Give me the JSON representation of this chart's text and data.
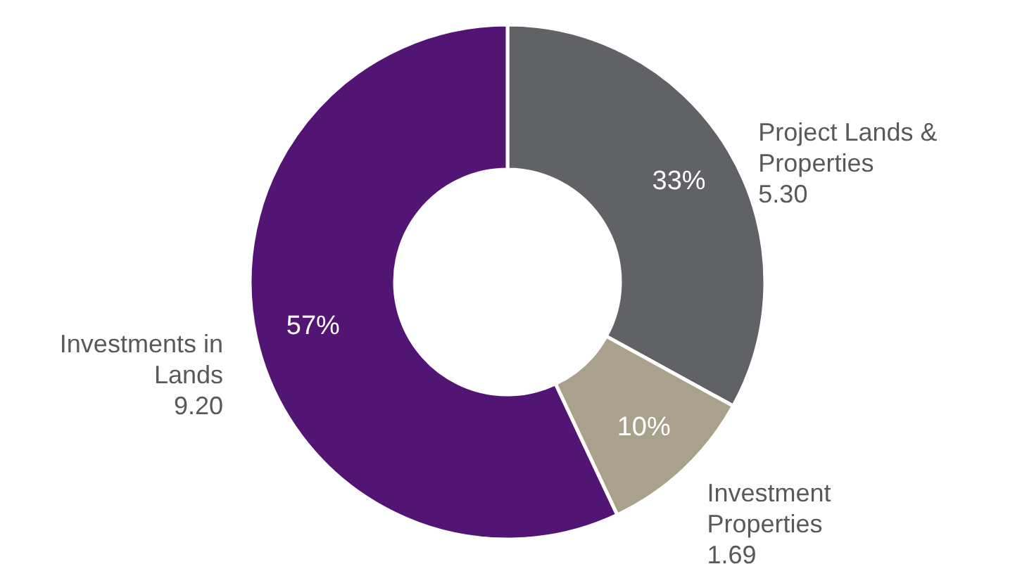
{
  "chart_data": {
    "type": "donut",
    "categories": [
      "Project Lands & Properties",
      "Investment Properties",
      "Investments in Lands"
    ],
    "values": [
      33,
      10,
      57
    ],
    "colors": [
      "#616265",
      "#a9a18c",
      "#531574"
    ],
    "value_labels": [
      "33%",
      "10%",
      "57%"
    ],
    "annotations": [
      "5.30",
      "1.69",
      "9.20"
    ]
  }
}
